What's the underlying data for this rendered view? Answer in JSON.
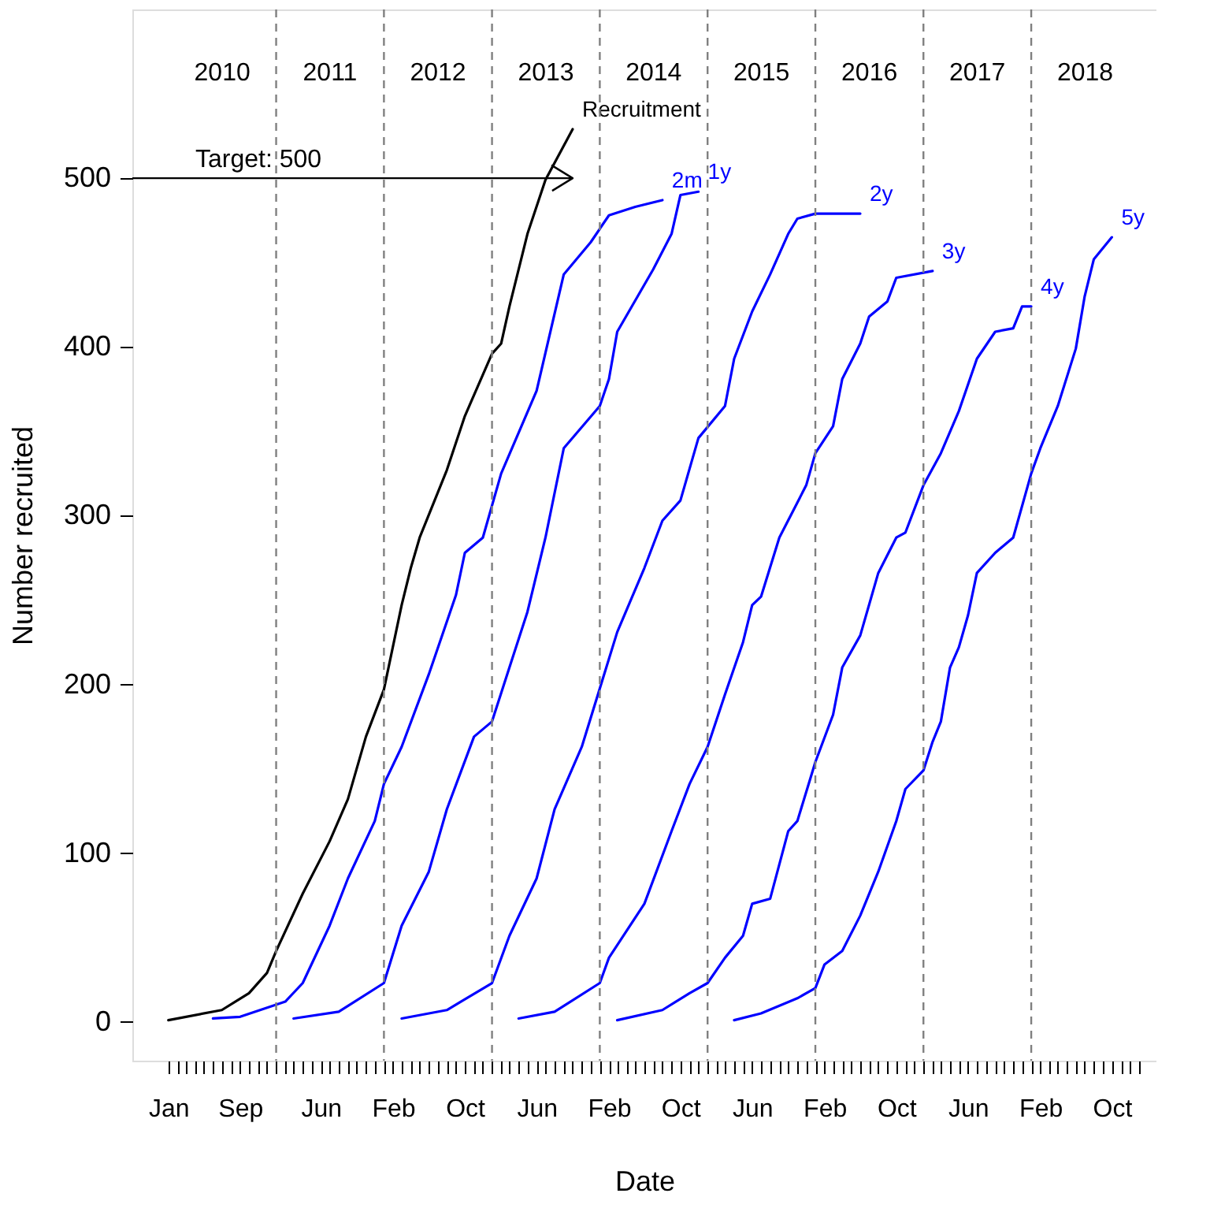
{
  "chart_data": {
    "type": "line",
    "xlabel": "Date",
    "ylabel": "Number recruited",
    "xlim": [
      "2009-09",
      "2019-03"
    ],
    "ylim": [
      -23,
      600
    ],
    "yticks": [
      0,
      100,
      200,
      300,
      400,
      500
    ],
    "xticks": [
      {
        "value": "2010-01",
        "label": "Jan"
      },
      {
        "value": "2010-02",
        "label": null
      },
      {
        "value": "2010-03",
        "label": null
      },
      {
        "value": "2010-04",
        "label": null
      },
      {
        "value": "2010-05",
        "label": null
      },
      {
        "value": "2010-06",
        "label": null
      },
      {
        "value": "2010-07",
        "label": null
      },
      {
        "value": "2010-08",
        "label": null
      },
      {
        "value": "2010-09",
        "label": "Sep"
      },
      {
        "value": "2010-10",
        "label": null
      },
      {
        "value": "2010-11",
        "label": null
      },
      {
        "value": "2010-12",
        "label": null
      },
      {
        "value": "2011-01",
        "label": null
      },
      {
        "value": "2011-02",
        "label": null
      },
      {
        "value": "2011-03",
        "label": null
      },
      {
        "value": "2011-04",
        "label": null
      },
      {
        "value": "2011-05",
        "label": null
      },
      {
        "value": "2011-06",
        "label": "Jun"
      },
      {
        "value": "2011-07",
        "label": null
      },
      {
        "value": "2011-08",
        "label": null
      },
      {
        "value": "2011-09",
        "label": null
      },
      {
        "value": "2011-10",
        "label": null
      },
      {
        "value": "2011-11",
        "label": null
      },
      {
        "value": "2011-12",
        "label": null
      },
      {
        "value": "2012-01",
        "label": null
      },
      {
        "value": "2012-02",
        "label": "Feb"
      },
      {
        "value": "2012-03",
        "label": null
      },
      {
        "value": "2012-04",
        "label": null
      },
      {
        "value": "2012-05",
        "label": null
      },
      {
        "value": "2012-06",
        "label": null
      },
      {
        "value": "2012-07",
        "label": null
      },
      {
        "value": "2012-08",
        "label": null
      },
      {
        "value": "2012-09",
        "label": null
      },
      {
        "value": "2012-10",
        "label": "Oct"
      },
      {
        "value": "2012-11",
        "label": null
      },
      {
        "value": "2012-12",
        "label": null
      },
      {
        "value": "2013-01",
        "label": null
      },
      {
        "value": "2013-02",
        "label": null
      },
      {
        "value": "2013-03",
        "label": null
      },
      {
        "value": "2013-04",
        "label": null
      },
      {
        "value": "2013-05",
        "label": null
      },
      {
        "value": "2013-06",
        "label": "Jun"
      },
      {
        "value": "2013-07",
        "label": null
      },
      {
        "value": "2013-08",
        "label": null
      },
      {
        "value": "2013-09",
        "label": null
      },
      {
        "value": "2013-10",
        "label": null
      },
      {
        "value": "2013-11",
        "label": null
      },
      {
        "value": "2013-12",
        "label": null
      },
      {
        "value": "2014-01",
        "label": null
      },
      {
        "value": "2014-02",
        "label": "Feb"
      },
      {
        "value": "2014-03",
        "label": null
      },
      {
        "value": "2014-04",
        "label": null
      },
      {
        "value": "2014-05",
        "label": null
      },
      {
        "value": "2014-06",
        "label": null
      },
      {
        "value": "2014-07",
        "label": null
      },
      {
        "value": "2014-08",
        "label": null
      },
      {
        "value": "2014-09",
        "label": null
      },
      {
        "value": "2014-10",
        "label": "Oct"
      },
      {
        "value": "2014-11",
        "label": null
      },
      {
        "value": "2014-12",
        "label": null
      },
      {
        "value": "2015-01",
        "label": null
      },
      {
        "value": "2015-02",
        "label": null
      },
      {
        "value": "2015-03",
        "label": null
      },
      {
        "value": "2015-04",
        "label": null
      },
      {
        "value": "2015-05",
        "label": null
      },
      {
        "value": "2015-06",
        "label": "Jun"
      },
      {
        "value": "2015-07",
        "label": null
      },
      {
        "value": "2015-08",
        "label": null
      },
      {
        "value": "2015-09",
        "label": null
      },
      {
        "value": "2015-10",
        "label": null
      },
      {
        "value": "2015-11",
        "label": null
      },
      {
        "value": "2015-12",
        "label": null
      },
      {
        "value": "2016-01",
        "label": null
      },
      {
        "value": "2016-02",
        "label": "Feb"
      },
      {
        "value": "2016-03",
        "label": null
      },
      {
        "value": "2016-04",
        "label": null
      },
      {
        "value": "2016-05",
        "label": null
      },
      {
        "value": "2016-06",
        "label": null
      },
      {
        "value": "2016-07",
        "label": null
      },
      {
        "value": "2016-08",
        "label": null
      },
      {
        "value": "2016-09",
        "label": null
      },
      {
        "value": "2016-10",
        "label": "Oct"
      },
      {
        "value": "2016-11",
        "label": null
      },
      {
        "value": "2016-12",
        "label": null
      },
      {
        "value": "2017-01",
        "label": null
      },
      {
        "value": "2017-02",
        "label": null
      },
      {
        "value": "2017-03",
        "label": null
      },
      {
        "value": "2017-04",
        "label": null
      },
      {
        "value": "2017-05",
        "label": null
      },
      {
        "value": "2017-06",
        "label": "Jun"
      },
      {
        "value": "2017-07",
        "label": null
      },
      {
        "value": "2017-08",
        "label": null
      },
      {
        "value": "2017-09",
        "label": null
      },
      {
        "value": "2017-10",
        "label": null
      },
      {
        "value": "2017-11",
        "label": null
      },
      {
        "value": "2017-12",
        "label": null
      },
      {
        "value": "2018-01",
        "label": null
      },
      {
        "value": "2018-02",
        "label": "Feb"
      },
      {
        "value": "2018-03",
        "label": null
      },
      {
        "value": "2018-04",
        "label": null
      },
      {
        "value": "2018-05",
        "label": null
      },
      {
        "value": "2018-06",
        "label": null
      },
      {
        "value": "2018-07",
        "label": null
      },
      {
        "value": "2018-08",
        "label": null
      },
      {
        "value": "2018-09",
        "label": null
      },
      {
        "value": "2018-10",
        "label": "Oct"
      },
      {
        "value": "2018-11",
        "label": null
      },
      {
        "value": "2018-12",
        "label": null
      },
      {
        "value": "2019-01",
        "label": null
      }
    ],
    "series": [
      {
        "name": "Recruitment",
        "color": "#000000",
        "x": [
          "2010-01",
          "2010-07",
          "2010-10",
          "2010-12",
          "2011-01",
          "2011-04",
          "2011-07",
          "2011-09",
          "2011-11",
          "2012-01",
          "2012-03",
          "2012-04",
          "2012-05",
          "2012-08",
          "2012-10",
          "2013-01",
          "2013-02",
          "2013-03",
          "2013-05",
          "2013-07",
          "2013-10"
        ],
        "values": [
          1,
          7,
          17,
          29,
          42,
          76,
          107,
          132,
          169,
          197,
          247,
          269,
          287,
          327,
          359,
          396,
          402,
          424,
          467,
          499,
          529
        ]
      },
      {
        "name": "2m",
        "color": "#0000ff",
        "x": [
          "2010-06",
          "2010-09",
          "2011-02",
          "2011-04",
          "2011-07",
          "2011-09",
          "2011-12",
          "2012-01",
          "2012-03",
          "2012-06",
          "2012-09",
          "2012-10",
          "2012-12",
          "2013-02",
          "2013-06",
          "2013-09",
          "2013-12",
          "2014-02",
          "2014-05",
          "2014-08"
        ],
        "values": [
          2,
          3,
          12,
          23,
          57,
          85,
          119,
          141,
          163,
          206,
          253,
          278,
          287,
          325,
          374,
          443,
          462,
          478,
          483,
          487
        ]
      },
      {
        "name": "1y",
        "color": "#0000ff",
        "x": [
          "2011-03",
          "2011-08",
          "2012-01",
          "2012-03",
          "2012-06",
          "2012-08",
          "2012-11",
          "2013-01",
          "2013-03",
          "2013-05",
          "2013-07",
          "2013-09",
          "2014-01",
          "2014-02",
          "2014-03",
          "2014-07",
          "2014-09",
          "2014-10",
          "2014-12"
        ],
        "values": [
          2,
          6,
          23,
          57,
          89,
          126,
          169,
          178,
          210,
          243,
          287,
          340,
          365,
          381,
          409,
          446,
          467,
          490,
          492
        ]
      },
      {
        "name": "2y",
        "color": "#0000ff",
        "x": [
          "2012-03",
          "2012-08",
          "2013-01",
          "2013-03",
          "2013-06",
          "2013-08",
          "2013-11",
          "2014-03",
          "2014-06",
          "2014-08",
          "2014-10",
          "2014-12",
          "2015-03",
          "2015-04",
          "2015-06",
          "2015-08",
          "2015-10",
          "2015-11",
          "2016-01",
          "2016-06"
        ],
        "values": [
          2,
          7,
          23,
          51,
          85,
          126,
          163,
          231,
          269,
          297,
          309,
          346,
          365,
          393,
          421,
          443,
          467,
          476,
          479,
          479
        ]
      },
      {
        "name": "3y",
        "color": "#0000ff",
        "x": [
          "2013-04",
          "2013-08",
          "2014-01",
          "2014-02",
          "2014-06",
          "2014-09",
          "2014-11",
          "2015-01",
          "2015-03",
          "2015-05",
          "2015-06",
          "2015-07",
          "2015-09",
          "2015-12",
          "2016-01",
          "2016-03",
          "2016-04",
          "2016-06",
          "2016-07",
          "2016-09",
          "2016-10",
          "2017-02"
        ],
        "values": [
          2,
          6,
          23,
          38,
          70,
          113,
          141,
          163,
          194,
          225,
          247,
          252,
          287,
          318,
          337,
          353,
          381,
          402,
          418,
          427,
          441,
          445
        ]
      },
      {
        "name": "4y",
        "color": "#0000ff",
        "x": [
          "2014-03",
          "2014-08",
          "2014-11",
          "2015-01",
          "2015-03",
          "2015-05",
          "2015-06",
          "2015-08",
          "2015-10",
          "2015-11",
          "2016-01",
          "2016-03",
          "2016-04",
          "2016-06",
          "2016-08",
          "2016-10",
          "2016-11",
          "2017-01",
          "2017-03",
          "2017-05",
          "2017-07",
          "2017-09",
          "2017-11",
          "2017-12",
          "2018-01"
        ],
        "values": [
          1,
          7,
          17,
          23,
          38,
          51,
          70,
          73,
          113,
          119,
          154,
          182,
          210,
          229,
          266,
          287,
          290,
          318,
          337,
          362,
          393,
          409,
          411,
          424,
          424
        ]
      },
      {
        "name": "5y",
        "color": "#0000ff",
        "x": [
          "2015-04",
          "2015-07",
          "2015-11",
          "2016-01",
          "2016-02",
          "2016-04",
          "2016-06",
          "2016-08",
          "2016-10",
          "2016-11",
          "2017-01",
          "2017-02",
          "2017-03",
          "2017-04",
          "2017-05",
          "2017-06",
          "2017-07",
          "2017-09",
          "2017-11",
          "2018-01",
          "2018-02",
          "2018-04",
          "2018-06",
          "2018-07",
          "2018-08",
          "2018-10"
        ],
        "values": [
          1,
          5,
          14,
          20,
          34,
          42,
          63,
          89,
          119,
          138,
          149,
          166,
          178,
          210,
          222,
          241,
          266,
          278,
          287,
          325,
          340,
          365,
          399,
          430,
          452,
          465
        ]
      }
    ],
    "ref_lines": [
      {
        "axis": "x",
        "value": "2011-01",
        "color": "#808080",
        "line_style": "dashed"
      },
      {
        "axis": "x",
        "value": "2012-01",
        "color": "#808080",
        "line_style": "dashed"
      },
      {
        "axis": "x",
        "value": "2013-01",
        "color": "#808080",
        "line_style": "dashed"
      },
      {
        "axis": "x",
        "value": "2014-01",
        "color": "#808080",
        "line_style": "dashed"
      },
      {
        "axis": "x",
        "value": "2015-01",
        "color": "#808080",
        "line_style": "dashed"
      },
      {
        "axis": "x",
        "value": "2016-01",
        "color": "#808080",
        "line_style": "dashed"
      },
      {
        "axis": "x",
        "value": "2017-01",
        "color": "#808080",
        "line_style": "dashed"
      },
      {
        "axis": "x",
        "value": "2018-01",
        "color": "#808080",
        "line_style": "dashed"
      },
      {
        "axis": "y",
        "value": 500,
        "label": "Target: 500",
        "color": "#000000",
        "line_style": "solid"
      }
    ],
    "annotations": [
      "2010",
      "2011",
      "2012",
      "2013",
      "2014",
      "2015",
      "2016",
      "2017",
      "2018"
    ]
  }
}
